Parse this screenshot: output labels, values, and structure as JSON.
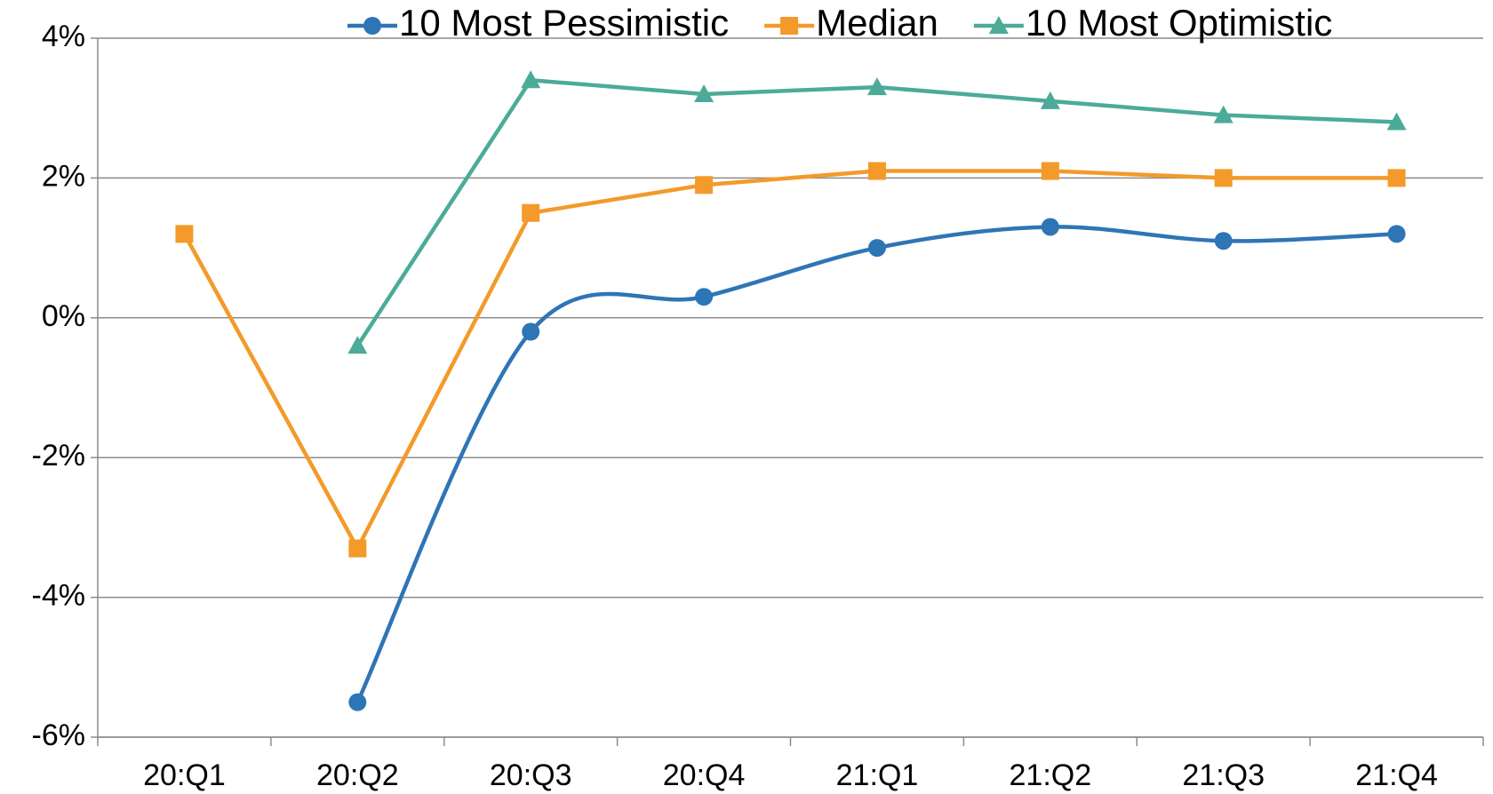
{
  "chart_data": {
    "type": "line",
    "categories": [
      "20:Q1",
      "20:Q2",
      "20:Q3",
      "20:Q4",
      "21:Q1",
      "21:Q2",
      "21:Q3",
      "21:Q4"
    ],
    "series": [
      {
        "name": "10 Most Pessimistic",
        "color": "#2e75b6",
        "marker": "circle",
        "smooth": true,
        "values": [
          null,
          -5.5,
          -0.2,
          0.3,
          1.0,
          1.3,
          1.1,
          1.2
        ]
      },
      {
        "name": "Median",
        "color": "#f39a2a",
        "marker": "square",
        "values": [
          1.2,
          -3.3,
          1.5,
          1.9,
          2.1,
          2.1,
          2.0,
          2.0
        ]
      },
      {
        "name": "10 Most Optimistic",
        "color": "#4bab98",
        "marker": "triangle",
        "values": [
          null,
          -0.4,
          3.4,
          3.2,
          3.3,
          3.1,
          2.9,
          2.8
        ]
      }
    ],
    "ylim": [
      -6,
      4
    ],
    "yticks": [
      {
        "value": -6,
        "label": "-6%"
      },
      {
        "value": -4,
        "label": "-4%"
      },
      {
        "value": -2,
        "label": "-2%"
      },
      {
        "value": 0,
        "label": "0%"
      },
      {
        "value": 2,
        "label": "2%"
      },
      {
        "value": 4,
        "label": "4%"
      }
    ],
    "grid": true,
    "legend": "top"
  }
}
